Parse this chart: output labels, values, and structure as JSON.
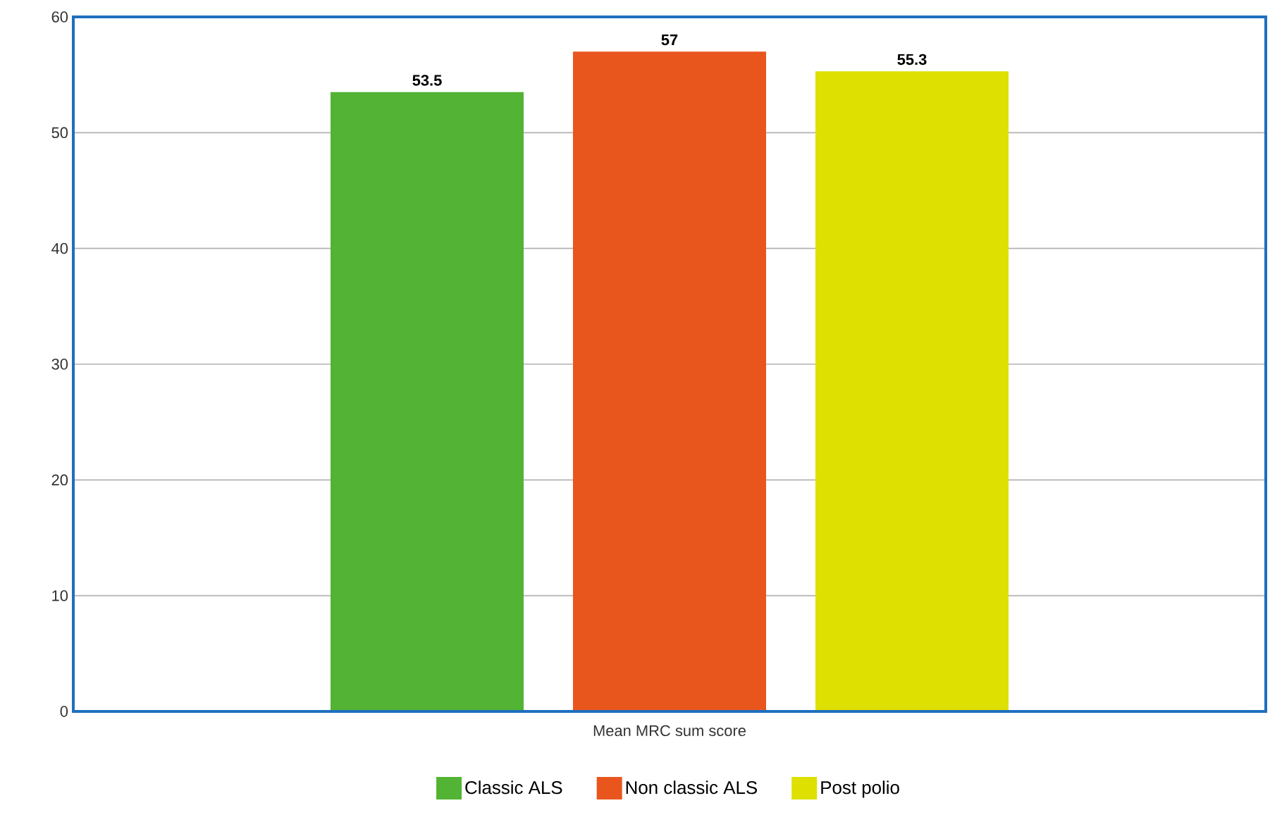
{
  "chart_data": {
    "type": "bar",
    "categories": [
      "Mean MRC sum score"
    ],
    "series": [
      {
        "name": "Classic ALS",
        "color": "#52b334",
        "values": [
          53.5
        ]
      },
      {
        "name": "Non classic ALS",
        "color": "#e9561d",
        "values": [
          57
        ]
      },
      {
        "name": "Post polio",
        "color": "#dde000",
        "values": [
          55.3
        ]
      }
    ],
    "ylim": [
      0,
      60
    ],
    "yticks": [
      0,
      10,
      20,
      30,
      40,
      50,
      60
    ],
    "grid": "y",
    "legend": "bottom",
    "data_labels": true
  }
}
